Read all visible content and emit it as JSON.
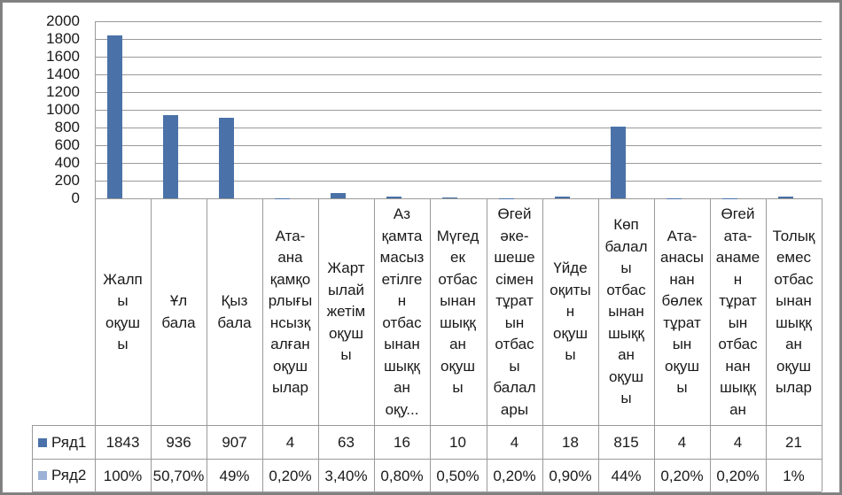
{
  "chart_data": {
    "type": "bar",
    "title": "",
    "xlabel": "",
    "ylabel": "",
    "ylim": [
      0,
      2000
    ],
    "yticks": [
      0,
      200,
      400,
      600,
      800,
      1000,
      1200,
      1400,
      1600,
      1800,
      2000
    ],
    "grid": true,
    "legend_position": "data-table",
    "categories": [
      "Жалпы оқушы",
      "Ұл бала",
      "Қыз бала",
      "Ата-ана қамқорлығынсызқалған оқушылар",
      "Жартылай жетім оқушы",
      "Аз қамтамасыз етілген отбасынан шыққан оқу...",
      "Мүгедек отбасынан шыққан оқушы",
      "Өгей әке-шешесімен тұратын отбасы балалары",
      "Үйде оқытын оқушы",
      "Көп балалы отбасынан шыққан оқушы",
      "Ата-анасынан бөлек тұратын оқушы",
      "Өгей ата-анамен тұратын отбасынан шыққан",
      "Толық емес отбасынан шыққан оқушылар"
    ],
    "series": [
      {
        "name": "Ряд1",
        "color": "#4a72a8",
        "values": [
          1843,
          936,
          907,
          4,
          63,
          16,
          10,
          4,
          18,
          815,
          4,
          4,
          21
        ],
        "display": [
          "1843",
          "936",
          "907",
          "4",
          "63",
          "16",
          "10",
          "4",
          "18",
          "815",
          "4",
          "4",
          "21"
        ]
      },
      {
        "name": "Ряд2",
        "color": "#9bb1d6",
        "values": [
          1.0,
          0.507,
          0.49,
          0.002,
          0.034,
          0.008,
          0.005,
          0.002,
          0.009,
          0.44,
          0.002,
          0.002,
          0.01
        ],
        "display": [
          "100%",
          "50,70%",
          "49%",
          "0,20%",
          "3,40%",
          "0,80%",
          "0,50%",
          "0,20%",
          "0,90%",
          "44%",
          "0,20%",
          "0,20%",
          "1%"
        ]
      }
    ]
  },
  "labels": {
    "yticks": [
      "2000",
      "1800",
      "1600",
      "1400",
      "1200",
      "1000",
      "800",
      "600",
      "400",
      "200",
      "0"
    ],
    "category_wrapped": [
      "Жалп\nы\nоқуш\nы",
      "Ұл\nбала",
      "Қыз\nбала",
      "Ата-\nана\nқамқо\nрлығы\nнсызқ\nалған\nоқуш\nылар",
      "Жарт\nылай\nжетім\nоқуш\nы",
      "Аз\nқамта\nмасыз\nетілге\nн\nотбас\nынан\nшыққ\nан\nоқу...",
      "Мүгед\nек\nотбас\nынан\nшыққ\nан\nоқуш\nы",
      "Өгей\nәке-\nшеше\nсімен\nтұрат\nын\nотбас\nы\nбалал\nары",
      "Үйде\nоқиты\nн\nоқуш\nы",
      "Көп\nбалал\nы\nотбас\nынан\nшыққ\nан\nоқуш\nы",
      "Ата-\nанасы\nнан\nбөлек\nтұрат\nын\nоқуш\nы",
      "Өгей\nата-\nанаме\nн\nтұрат\nын\nотбас\nнан\nшыққ\nан",
      "Толық\nемес\nотбас\nынан\nшыққ\nан\nоқуш\nылар"
    ]
  }
}
